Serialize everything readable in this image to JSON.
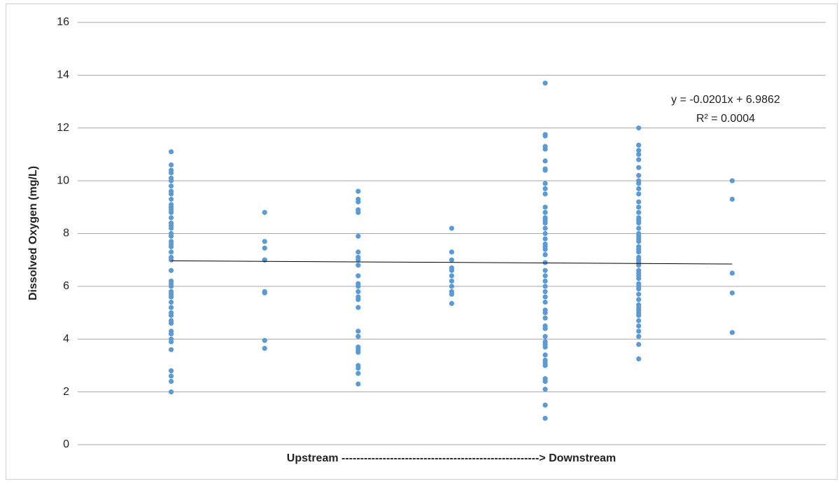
{
  "chart_data": {
    "type": "scatter",
    "y_label": "Dissolved Oxygen (mg/L)",
    "x_label": "Upstream -----------------------------------------------------> Downstream",
    "color": "#5b9bd5",
    "xlim": [
      0,
      8
    ],
    "ylim": [
      0,
      16
    ],
    "yticks": [
      0,
      2,
      4,
      6,
      8,
      10,
      12,
      14,
      16
    ],
    "grid": true,
    "columns": [
      {
        "x": 1,
        "y": [
          11.1,
          10.6,
          10.4,
          10.3,
          10.1,
          10.0,
          9.8,
          9.6,
          9.5,
          9.3,
          9.1,
          9.0,
          8.9,
          8.8,
          8.6,
          8.4,
          8.3,
          8.2,
          8.0,
          7.9,
          7.7,
          7.6,
          7.5,
          7.3,
          7.1,
          7.0,
          6.6,
          6.2,
          6.1,
          6.0,
          5.8,
          5.7,
          5.6,
          5.4,
          5.2,
          5.0,
          4.9,
          4.7,
          4.6,
          4.3,
          4.2,
          4.0,
          3.9,
          3.6,
          2.8,
          2.6,
          2.4,
          2.0
        ]
      },
      {
        "x": 2,
        "y": [
          8.8,
          7.7,
          7.45,
          7.0,
          7.0,
          5.8,
          5.75,
          3.95,
          3.65
        ]
      },
      {
        "x": 3,
        "y": [
          9.6,
          9.3,
          9.2,
          8.9,
          8.8,
          7.9,
          7.3,
          7.1,
          7.0,
          6.8,
          6.4,
          6.1,
          6.0,
          5.8,
          5.6,
          5.5,
          5.2,
          4.3,
          4.1,
          3.7,
          3.6,
          3.5,
          3.0,
          2.9,
          2.7,
          2.3
        ]
      },
      {
        "x": 4,
        "y": [
          8.2,
          7.3,
          7.0,
          6.7,
          6.6,
          6.4,
          6.2,
          6.0,
          5.8,
          5.7,
          5.35
        ]
      },
      {
        "x": 5,
        "y": [
          13.7,
          11.75,
          11.7,
          11.3,
          11.2,
          10.75,
          10.45,
          10.4,
          9.9,
          9.7,
          9.5,
          9.0,
          8.8,
          8.6,
          8.5,
          8.4,
          8.2,
          8.0,
          7.8,
          7.6,
          7.5,
          7.4,
          7.2,
          6.9,
          6.6,
          6.4,
          6.2,
          6.0,
          5.8,
          5.6,
          5.4,
          5.1,
          5.0,
          4.8,
          4.5,
          4.4,
          4.1,
          3.9,
          3.8,
          3.7,
          3.4,
          3.2,
          3.1,
          3.0,
          2.5,
          2.4,
          2.1,
          1.5,
          1.0
        ]
      },
      {
        "x": 6,
        "y": [
          12.0,
          11.35,
          11.15,
          11.0,
          10.8,
          10.5,
          10.2,
          10.0,
          9.9,
          9.7,
          9.5,
          9.2,
          9.0,
          8.8,
          8.6,
          8.5,
          8.4,
          8.2,
          8.0,
          7.9,
          7.8,
          7.7,
          7.5,
          7.4,
          7.3,
          7.1,
          7.0,
          6.9,
          6.8,
          6.6,
          6.5,
          6.4,
          6.3,
          6.1,
          6.0,
          5.9,
          5.7,
          5.5,
          5.3,
          5.2,
          5.1,
          5.0,
          4.9,
          4.7,
          4.5,
          4.3,
          4.1,
          3.8,
          3.25
        ]
      },
      {
        "x": 7,
        "y": [
          10.0,
          9.3,
          6.5,
          5.75,
          4.25
        ]
      }
    ],
    "trendline": {
      "slope": -0.0201,
      "intercept": 6.9862,
      "color": "#000000",
      "equation": "y = -0.0201x + 6.9862",
      "r_squared": "R² = 0.0004"
    }
  }
}
